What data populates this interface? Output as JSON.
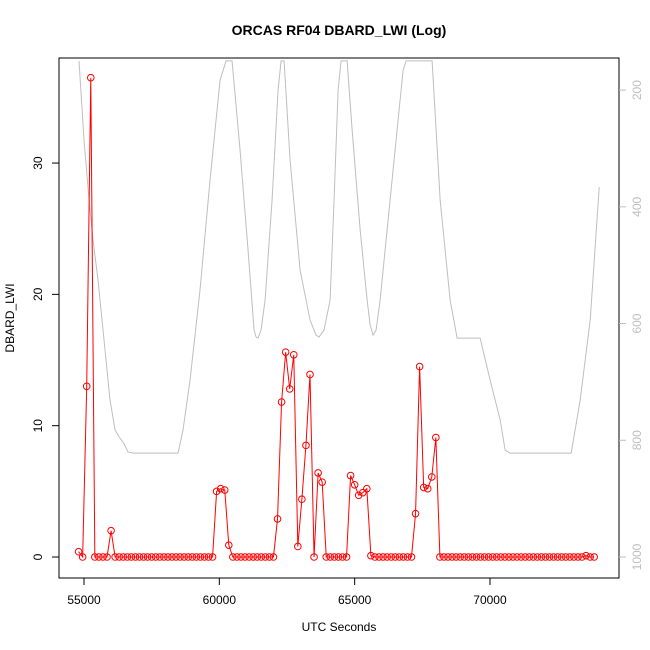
{
  "chart_data": {
    "type": "line",
    "title": "ORCAS RF04 DBARD_LWI (Log)",
    "xlabel": "UTC Seconds",
    "ylabel": "DBARD_LWI",
    "xlim": [
      54076,
      74767
    ],
    "ylim": [
      -1.6,
      38
    ],
    "y2lim": [
      1036,
      145
    ],
    "xticks": [
      55000,
      60000,
      65000,
      70000
    ],
    "yticks": [
      0,
      10,
      20,
      30
    ],
    "y2ticks": [
      200,
      400,
      600,
      800,
      1000
    ],
    "series": [
      {
        "color": "#ff0000",
        "markers": true,
        "x": [
          54800,
          54950,
          55100,
          55250,
          55400,
          55550,
          55700,
          55850,
          56000,
          56150,
          56300,
          56450,
          56600,
          56750,
          56900,
          57050,
          57200,
          57350,
          57500,
          57650,
          57800,
          57950,
          58100,
          58250,
          58400,
          58550,
          58700,
          58850,
          59000,
          59150,
          59300,
          59450,
          59600,
          59750,
          59900,
          60050,
          60200,
          60350,
          60500,
          60650,
          60800,
          60950,
          61100,
          61250,
          61400,
          61550,
          61700,
          61850,
          62000,
          62150,
          62300,
          62450,
          62600,
          62750,
          62900,
          63050,
          63200,
          63350,
          63500,
          63650,
          63800,
          63950,
          64100,
          64250,
          64400,
          64550,
          64700,
          64850,
          65000,
          65150,
          65300,
          65450,
          65600,
          65750,
          65900,
          66050,
          66200,
          66350,
          66500,
          66650,
          66800,
          66950,
          67100,
          67250,
          67400,
          67550,
          67700,
          67850,
          68000,
          68150,
          68300,
          68450,
          68600,
          68750,
          68900,
          69050,
          69200,
          69350,
          69500,
          69650,
          69800,
          69950,
          70100,
          70250,
          70400,
          70550,
          70700,
          70850,
          71000,
          71150,
          71300,
          71450,
          71600,
          71750,
          71900,
          72050,
          72200,
          72350,
          72500,
          72650,
          72800,
          72950,
          73100,
          73250,
          73400,
          73550,
          73700,
          73850
        ],
        "values": [
          0.4,
          0,
          13,
          36.5,
          0,
          0,
          0,
          0,
          2,
          0,
          0,
          0,
          0,
          0,
          0,
          0,
          0,
          0,
          0,
          0,
          0,
          0,
          0,
          0,
          0,
          0,
          0,
          0,
          0,
          0,
          0,
          0,
          0,
          0,
          5,
          5.2,
          5.1,
          0.9,
          0,
          0,
          0,
          0,
          0,
          0,
          0,
          0,
          0,
          0,
          0,
          2.9,
          11.8,
          15.6,
          12.8,
          15.4,
          0.8,
          4.4,
          8.5,
          13.9,
          0,
          6.4,
          5.7,
          0,
          0,
          0,
          0,
          0,
          0,
          6.2,
          5.5,
          4.7,
          4.9,
          5.2,
          0.1,
          0,
          0,
          0,
          0,
          0,
          0,
          0,
          0,
          0,
          0,
          3.3,
          14.5,
          5.3,
          5.2,
          6.1,
          9.1,
          0,
          0,
          0,
          0,
          0,
          0,
          0,
          0,
          0,
          0,
          0,
          0,
          0,
          0,
          0,
          0,
          0,
          0,
          0,
          0,
          0,
          0,
          0,
          0,
          0,
          0,
          0,
          0,
          0,
          0,
          0,
          0,
          0,
          0,
          0,
          0,
          0.1,
          0,
          0
        ]
      },
      {
        "color": "#bebebe",
        "axis": "y2",
        "markers": false,
        "x": [
          54815,
          55000,
          55185,
          55333,
          55517,
          55739,
          55961,
          56146,
          56294,
          56478,
          56626,
          56811,
          58474,
          58659,
          58918,
          59287,
          59657,
          60027,
          60248,
          60470,
          60766,
          61061,
          61283,
          61357,
          61431,
          61542,
          61690,
          61949,
          62170,
          62281,
          62392,
          62614,
          62983,
          63353,
          63575,
          63686,
          63870,
          64092,
          64240,
          64388,
          64499,
          64721,
          64906,
          65202,
          65461,
          65570,
          65681,
          65792,
          65940,
          66310,
          66605,
          66790,
          66901,
          67862,
          68158,
          68528,
          68787,
          69636,
          70006,
          70376,
          70560,
          70745,
          73000,
          73333,
          73703,
          74036
        ],
        "values": [
          150,
          285,
          388,
          457,
          525,
          628,
          731,
          782,
          794,
          806,
          820,
          822,
          822,
          782,
          697,
          542,
          354,
          183,
          150,
          150,
          303,
          474,
          611,
          623,
          625,
          611,
          560,
          388,
          200,
          150,
          150,
          320,
          508,
          594,
          620,
          623,
          611,
          560,
          388,
          200,
          150,
          150,
          268,
          439,
          560,
          602,
          620,
          611,
          560,
          388,
          251,
          166,
          150,
          150,
          388,
          560,
          625,
          625,
          697,
          765,
          817,
          822,
          822,
          731,
          594,
          366
        ]
      }
    ]
  }
}
